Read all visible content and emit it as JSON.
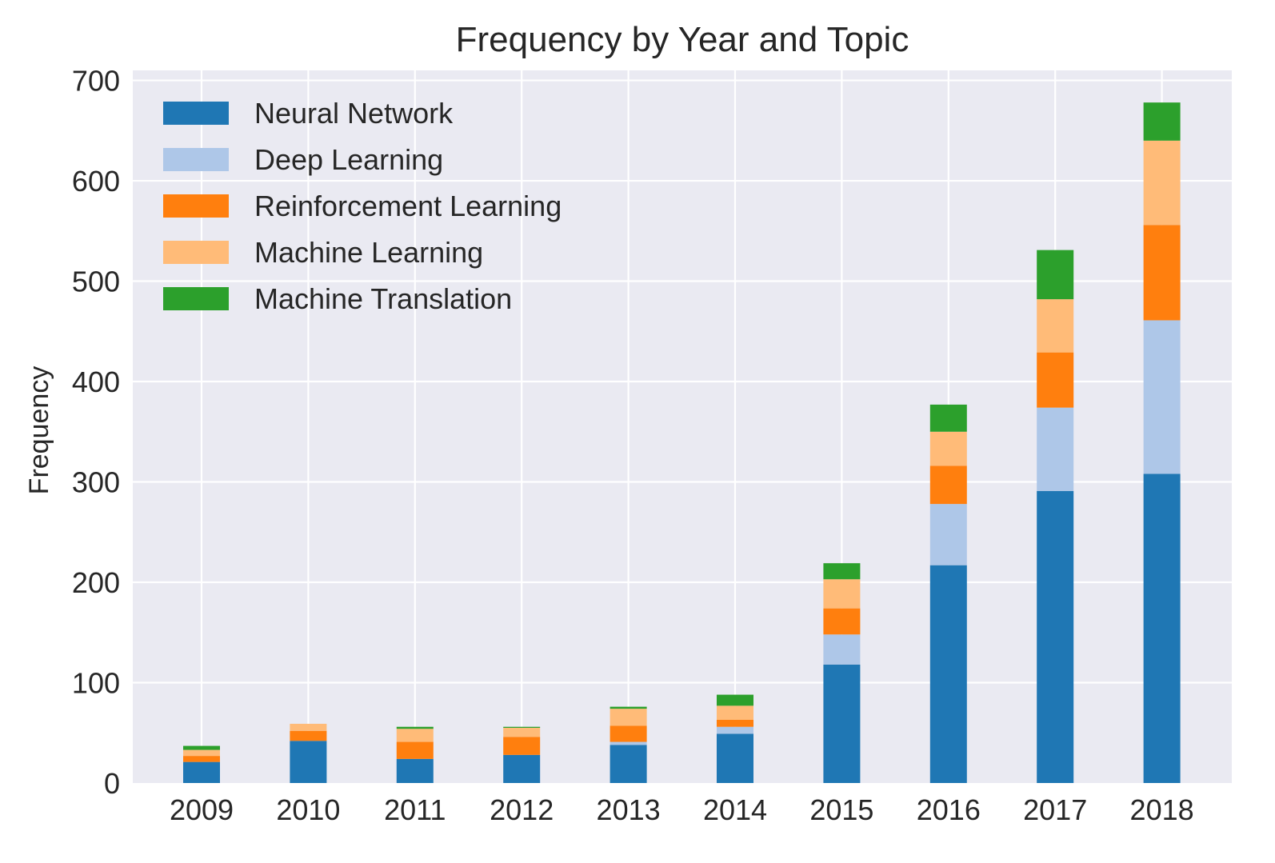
{
  "chart_data": {
    "type": "bar",
    "stacked": true,
    "title": "Frequency by Year and Topic",
    "xlabel": "",
    "ylabel": "Frequency",
    "ylim": [
      0,
      710
    ],
    "yticks": [
      0,
      100,
      200,
      300,
      400,
      500,
      600,
      700
    ],
    "grid": true,
    "legend_position": "top-left",
    "categories": [
      "2009",
      "2010",
      "2011",
      "2012",
      "2013",
      "2014",
      "2015",
      "2016",
      "2017",
      "2018"
    ],
    "series": [
      {
        "name": "Neural Network",
        "color": "#1f77b4",
        "values": [
          21,
          42,
          24,
          28,
          38,
          49,
          118,
          217,
          291,
          308
        ]
      },
      {
        "name": "Deep Learning",
        "color": "#aec7e8",
        "values": [
          0,
          0,
          0,
          0,
          3,
          7,
          30,
          61,
          83,
          153
        ]
      },
      {
        "name": "Reinforcement Learning",
        "color": "#ff7f0e",
        "values": [
          6,
          10,
          17,
          18,
          16,
          7,
          26,
          38,
          55,
          95
        ]
      },
      {
        "name": "Machine Learning",
        "color": "#ffbb78",
        "values": [
          6,
          7,
          13,
          9,
          17,
          14,
          29,
          34,
          53,
          84
        ]
      },
      {
        "name": "Machine Translation",
        "color": "#2ca02c",
        "values": [
          4,
          0,
          2,
          1,
          2,
          11,
          16,
          27,
          49,
          38
        ]
      }
    ]
  }
}
